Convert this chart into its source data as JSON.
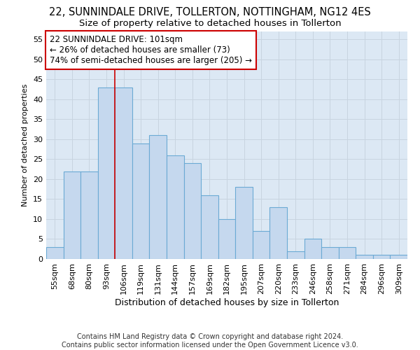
{
  "title": "22, SUNNINDALE DRIVE, TOLLERTON, NOTTINGHAM, NG12 4ES",
  "subtitle": "Size of property relative to detached houses in Tollerton",
  "xlabel": "Distribution of detached houses by size in Tollerton",
  "ylabel": "Number of detached properties",
  "footer_line1": "Contains HM Land Registry data © Crown copyright and database right 2024.",
  "footer_line2": "Contains public sector information licensed under the Open Government Licence v3.0.",
  "bar_labels": [
    "55sqm",
    "68sqm",
    "80sqm",
    "93sqm",
    "106sqm",
    "119sqm",
    "131sqm",
    "144sqm",
    "157sqm",
    "169sqm",
    "182sqm",
    "195sqm",
    "207sqm",
    "220sqm",
    "233sqm",
    "246sqm",
    "258sqm",
    "271sqm",
    "284sqm",
    "296sqm",
    "309sqm"
  ],
  "bar_values": [
    3,
    22,
    22,
    43,
    43,
    29,
    31,
    26,
    24,
    16,
    10,
    18,
    7,
    13,
    2,
    5,
    3,
    3,
    1,
    1,
    1
  ],
  "bar_color": "#c5d8ee",
  "bar_edge_color": "#6baad4",
  "annotation_box_text": "22 SUNNINDALE DRIVE: 101sqm\n← 26% of detached houses are smaller (73)\n74% of semi-detached houses are larger (205) →",
  "annotation_box_color": "#ffffff",
  "annotation_box_edge_color": "#cc0000",
  "vline_color": "#cc0000",
  "vline_x_index": 4,
  "ylim_max": 57,
  "yticks": [
    0,
    5,
    10,
    15,
    20,
    25,
    30,
    35,
    40,
    45,
    50,
    55
  ],
  "grid_color": "#c8d4e0",
  "bg_color": "#dce8f4",
  "fig_bg_color": "#ffffff",
  "title_fontsize": 10.5,
  "subtitle_fontsize": 9.5,
  "xlabel_fontsize": 9,
  "ylabel_fontsize": 8,
  "tick_fontsize": 8,
  "annotation_fontsize": 8.5,
  "footer_fontsize": 7
}
